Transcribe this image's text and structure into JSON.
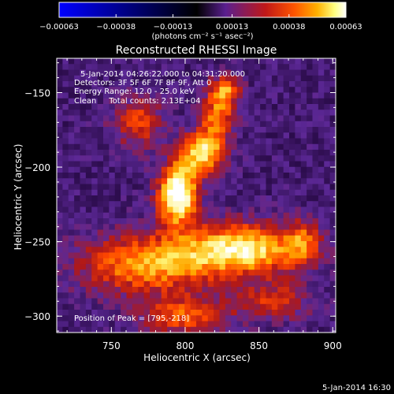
{
  "chart_data": {
    "type": "heatmap",
    "title": "Reconstructed RHESSI Image",
    "xlabel": "Heliocentric X (arcsec)",
    "ylabel": "Heliocentric Y (arcsec)",
    "xlim": [
      713,
      902
    ],
    "ylim": [
      -311,
      -127
    ],
    "x_ticks": [
      750,
      800,
      850,
      900
    ],
    "y_ticks": [
      -300,
      -250,
      -200,
      -150
    ],
    "colorbar": {
      "ticks": [
        -0.00063,
        -0.00038,
        -0.00013,
        0.00013,
        0.00038,
        0.00063
      ],
      "tick_labels": [
        "-0.00063",
        "-0.00038",
        "-0.00013",
        "0.00013",
        "0.00038",
        "0.00063"
      ],
      "label": "(photons cm⁻² s⁻¹ asec⁻²)",
      "range": [
        -0.00063,
        0.00063
      ],
      "colormap": [
        "#0000ff",
        "#000000",
        "#5a1f8f",
        "#b01818",
        "#ff5500",
        "#ffb000",
        "#ffff80",
        "#ffffff"
      ]
    },
    "annotations": [
      "5-Jan-2014 04:26:22.000 to 04:31:20.000",
      "Detectors: 3F 5F 6F 7F 8F 9F, Att 0",
      "Energy Range: 12.0 - 25.0 keV",
      "Clean     Total counts: 2.13E+04"
    ],
    "peak_label": "Position of Peak = [795,-218]",
    "peak_position": [
      795,
      -218
    ],
    "sources": [
      {
        "x": 795,
        "y": -218,
        "sx": 9,
        "sy": 14,
        "amp": 1.0
      },
      {
        "x": 812,
        "y": -190,
        "sx": 10,
        "sy": 10,
        "amp": 0.75
      },
      {
        "x": 822,
        "y": -165,
        "sx": 8,
        "sy": 12,
        "amp": 0.5
      },
      {
        "x": 828,
        "y": -148,
        "sx": 7,
        "sy": 7,
        "amp": 0.45
      },
      {
        "x": 768,
        "y": -170,
        "sx": 12,
        "sy": 12,
        "amp": 0.4
      },
      {
        "x": 840,
        "y": -255,
        "sx": 28,
        "sy": 12,
        "amp": 0.75
      },
      {
        "x": 775,
        "y": -265,
        "sx": 32,
        "sy": 14,
        "amp": 0.6
      },
      {
        "x": 800,
        "y": -300,
        "sx": 20,
        "sy": 9,
        "amp": 0.45
      },
      {
        "x": 860,
        "y": -290,
        "sx": 18,
        "sy": 9,
        "amp": 0.35
      },
      {
        "x": 880,
        "y": -250,
        "sx": 8,
        "sy": 10,
        "amp": 0.35
      }
    ],
    "background_level": -0.35
  },
  "footer_date": "5-Jan-2014 16:30"
}
